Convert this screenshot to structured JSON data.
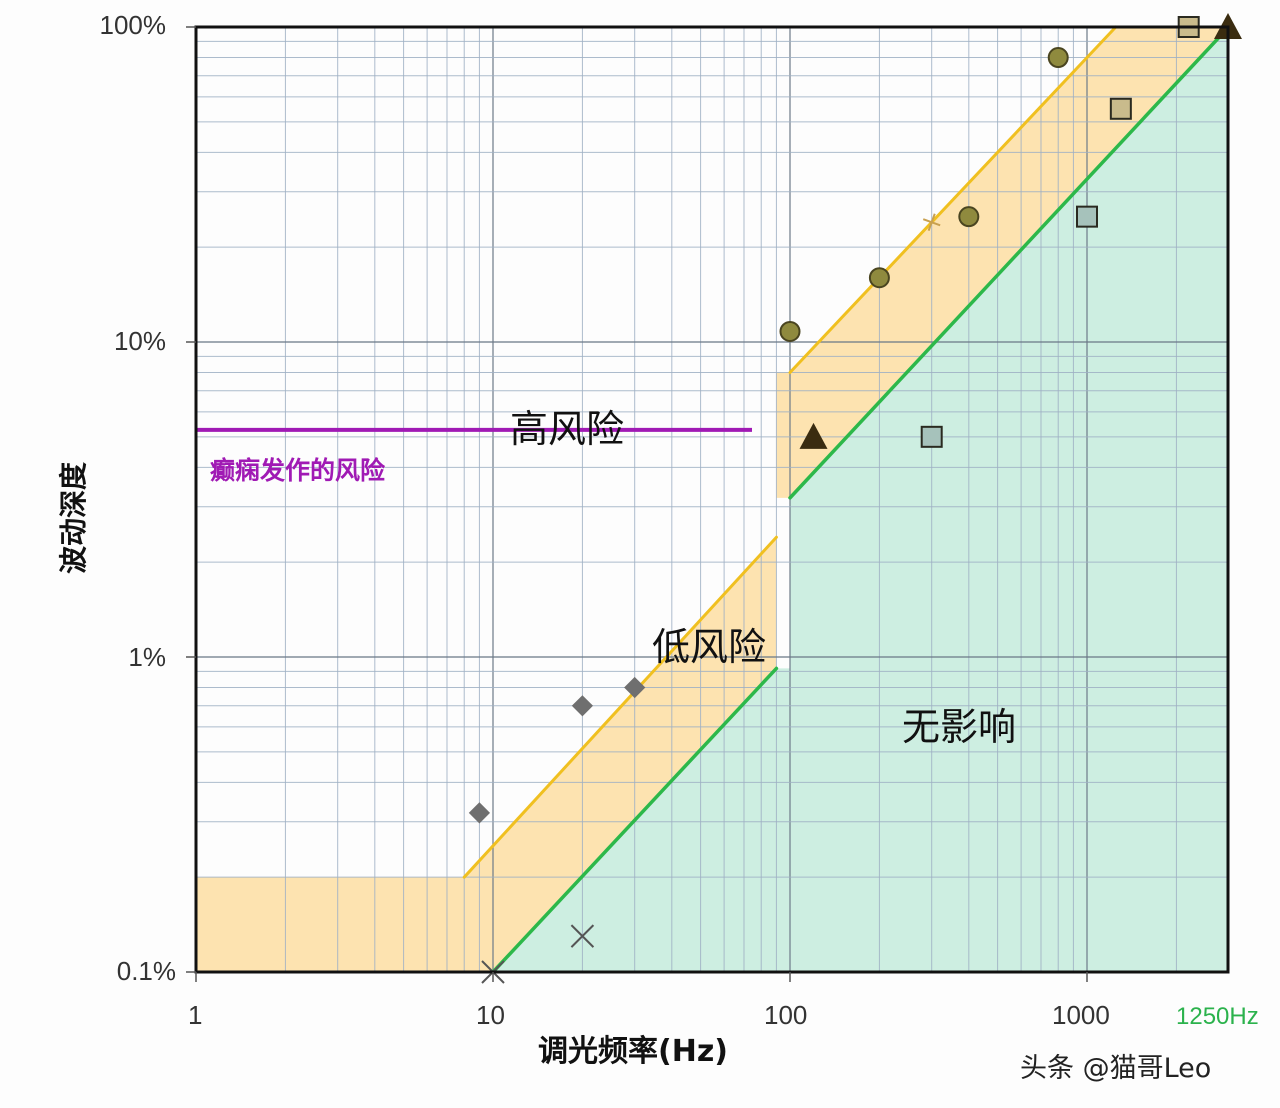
{
  "chart_data": {
    "type": "scatter",
    "title": "",
    "xlabel": "调光频率(Hz)",
    "ylabel": "波动深度",
    "x_scale": "log",
    "y_scale": "log",
    "xlim": [
      1,
      3000
    ],
    "ylim": [
      0.1,
      100
    ],
    "x_ticks": [
      "1",
      "10",
      "100",
      "1000"
    ],
    "y_ticks": [
      "0.1%",
      "1%",
      "10%",
      "100%"
    ],
    "grid": true,
    "annotations": [
      {
        "text": "高风险",
        "x": 40,
        "y": 5.5
      },
      {
        "text": "低风险",
        "x": 55,
        "y": 1.0
      },
      {
        "text": "无影响",
        "x": 400,
        "y": 0.58
      },
      {
        "text": "癫痫发作的风险",
        "x": 5,
        "y": 4.0,
        "color": "#a01ab4"
      },
      {
        "text": "1250Hz",
        "x": 3000,
        "y": 0.07,
        "color": "#2bb24c"
      }
    ],
    "epilepsy_threshold": {
      "y": 5,
      "x_range": [
        1,
        75
      ],
      "color": "#a01ab4"
    },
    "boundaries": [
      {
        "name": "low-risk upper (yellow)",
        "color": "#f0c020",
        "segments": [
          [
            [
              8,
              0.2
            ],
            [
              90,
              2.4
            ]
          ],
          [
            [
              100,
              8
            ],
            [
              1250,
              100
            ]
          ]
        ]
      },
      {
        "name": "no-effect line (green)",
        "color": "#2db84a",
        "segments": [
          [
            [
              10,
              0.1
            ],
            [
              90,
              0.92
            ]
          ],
          [
            [
              100,
              3.2
            ],
            [
              3000,
              100
            ]
          ]
        ]
      }
    ],
    "series": [
      {
        "name": "diamonds",
        "marker": "diamond",
        "color": "#6f6f6f",
        "points": [
          [
            9,
            0.32
          ],
          [
            20,
            0.7
          ],
          [
            30,
            0.8
          ]
        ]
      },
      {
        "name": "x marks",
        "marker": "x",
        "color": "#555555",
        "points": [
          [
            10,
            0.1
          ],
          [
            20,
            0.13
          ]
        ]
      },
      {
        "name": "circles",
        "marker": "circle",
        "color": "#8f8a3e",
        "points": [
          [
            100,
            10.8
          ],
          [
            200,
            16
          ],
          [
            400,
            25
          ],
          [
            800,
            80
          ]
        ]
      },
      {
        "name": "plus",
        "marker": "plus",
        "color": "#c8a050",
        "points": [
          [
            300,
            24
          ]
        ]
      },
      {
        "name": "triangles",
        "marker": "triangle",
        "color": "#3a2c10",
        "points": [
          [
            120,
            5
          ],
          [
            3000,
            100
          ]
        ]
      },
      {
        "name": "squares light",
        "marker": "square",
        "color": "#c9bb8c",
        "points": [
          [
            1300,
            55
          ],
          [
            2200,
            100
          ]
        ]
      },
      {
        "name": "squares teal",
        "marker": "square",
        "color": "#a6c2bb",
        "points": [
          [
            300,
            5
          ],
          [
            1000,
            25
          ]
        ]
      }
    ],
    "regions": [
      {
        "name": "高风险",
        "fill": "none"
      },
      {
        "name": "低风险",
        "fill": "#fde3b0"
      },
      {
        "name": "无影响",
        "fill": "#cdeee1"
      }
    ]
  },
  "labels": {
    "y_axis": "波动深度",
    "x_axis": "调光频率(Hz)",
    "y_ticks": [
      "100%",
      "10%",
      "1%",
      "0.1%"
    ],
    "x_ticks": [
      "1",
      "10",
      "100",
      "1000"
    ],
    "x_extra": "1250Hz",
    "high_risk": "高风险",
    "low_risk": "低风险",
    "no_effect": "无影响",
    "epilepsy": "癫痫发作的风险",
    "watermark": "头条 @猫哥Leo"
  }
}
